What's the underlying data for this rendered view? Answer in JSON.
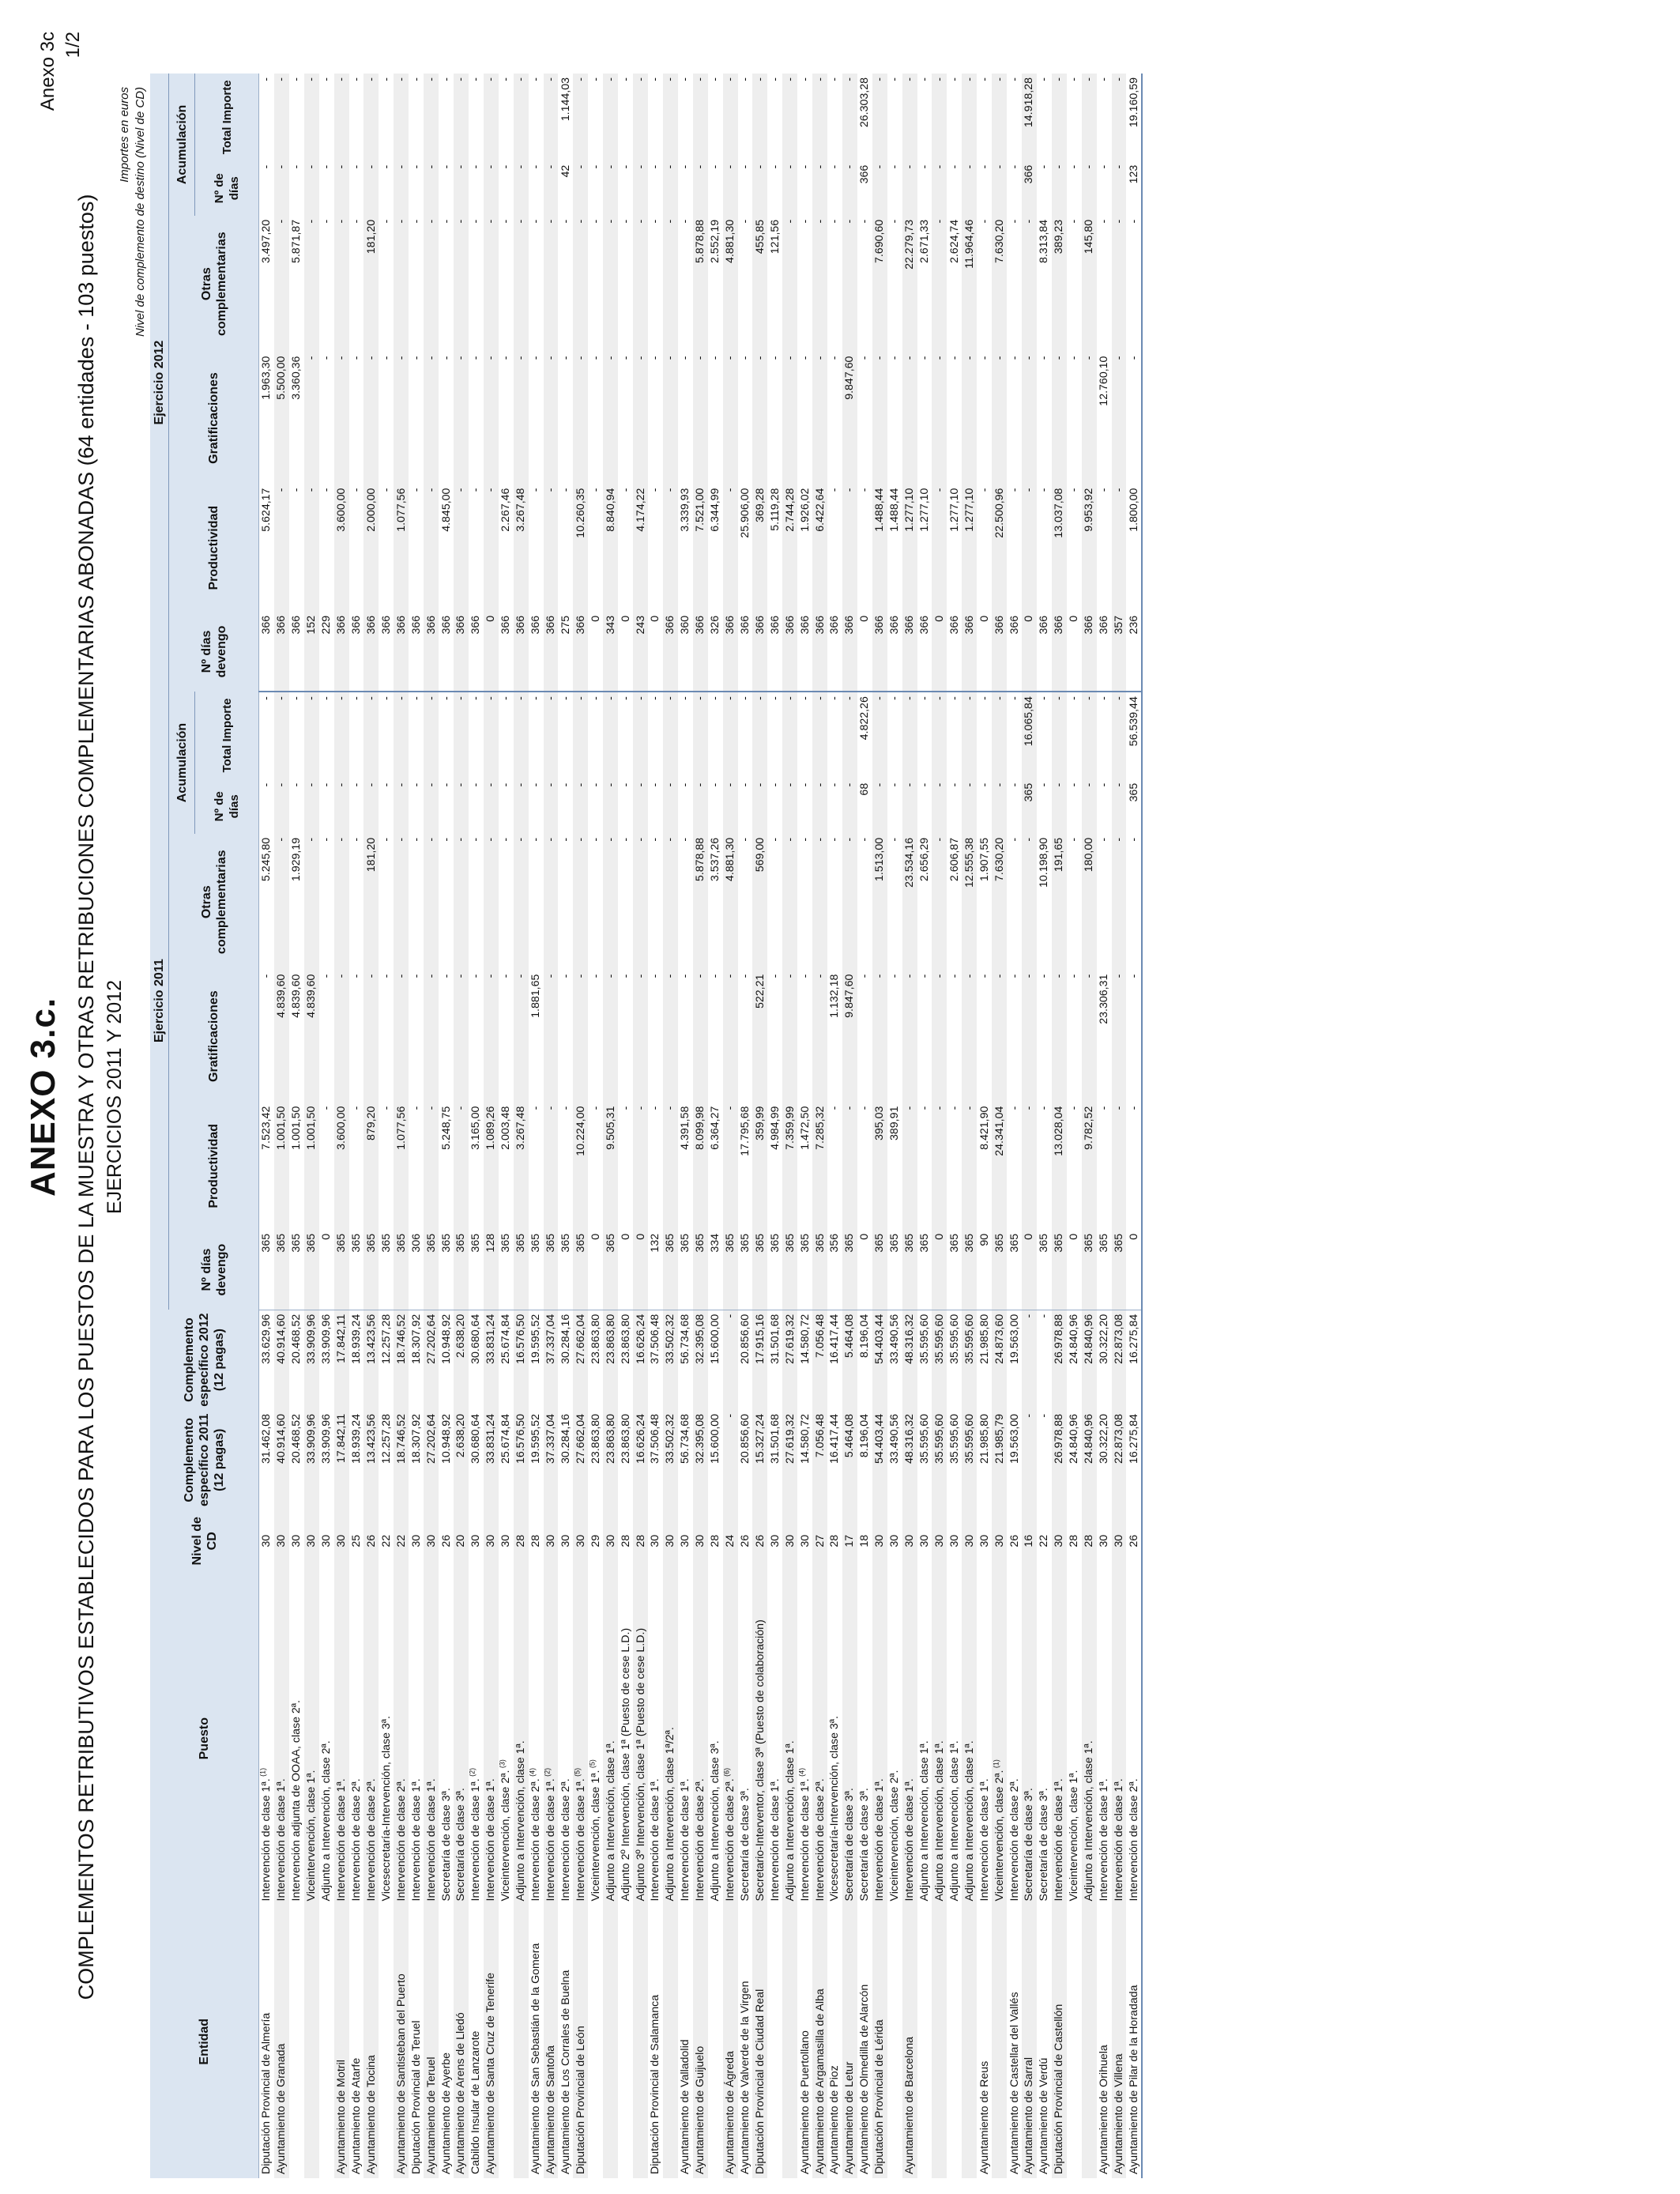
{
  "header": {
    "anexo_ref": "Anexo 3c",
    "page": "1/2",
    "title": "ANEXO 3.c.",
    "subtitle": "COMPLEMENTOS RETRIBUTIVOS ESTABLECIDOS PARA LOS PUESTOS DE LA MUESTRA Y OTRAS RETRIBUCIONES COMPLEMENTARIAS ABONADAS (64 entidades - 103 puestos)",
    "years": "EJERCICIOS 2011 Y 2012",
    "note_units": "Importes en euros",
    "note_level": "Nivel de complemento de destino (Nivel de CD)"
  },
  "columns": {
    "entidad": "Entidad",
    "puesto": "Puesto",
    "nivel": "Nivel de CD",
    "ce2011": "Complemento específico 2011 (12 pagas)",
    "ce2012": "Complemento específico 2012 (12 pagas)",
    "ej2011": "Ejercicio 2011",
    "ej2012": "Ejercicio 2012",
    "dias": "Nº días devengo",
    "productividad": "Productividad",
    "gratificaciones": "Gratificaciones",
    "otras": "Otras complementarias",
    "acumulacion": "Acumulación",
    "acum_dias": "Nº de días",
    "acum_total": "Total Importe"
  },
  "rows": [
    [
      "Diputación Provincial de Almería",
      "Intervención de clase 1ª.",
      "1",
      "30",
      "31.462,08",
      "33.629,96",
      "365",
      "7.523,42",
      "-",
      "5.245,80",
      "-",
      "-",
      "366",
      "5.624,17",
      "1.963,30",
      "3.497,20",
      "-",
      "-"
    ],
    [
      "Ayuntamiento de Granada",
      "Intervención de clase 1ª.",
      "",
      "30",
      "40.914,60",
      "40.914,60",
      "365",
      "1.001,50",
      "4.839,60",
      "-",
      "-",
      "-",
      "366",
      "-",
      "5.500,00",
      "-",
      "-",
      "-"
    ],
    [
      "",
      "Intervención adjunta de OOAA, clase 2ª.",
      "",
      "30",
      "20.468,52",
      "20.468,52",
      "365",
      "1.001,50",
      "4.839,60",
      "1.929,19",
      "-",
      "-",
      "366",
      "-",
      "3.360,36",
      "5.871,87",
      "-",
      "-"
    ],
    [
      "",
      "Viceintervención, clase 1ª.",
      "",
      "30",
      "33.909,96",
      "33.909,96",
      "365",
      "1.001,50",
      "4.839,60",
      "-",
      "-",
      "-",
      "152",
      "-",
      "-",
      "-",
      "-",
      "-"
    ],
    [
      "",
      "Adjunto a Intervención, clase 2ª.",
      "",
      "30",
      "33.909,96",
      "33.909,96",
      "0",
      "-",
      "-",
      "-",
      "-",
      "-",
      "229",
      "-",
      "-",
      "-",
      "-",
      "-"
    ],
    [
      "Ayuntamiento de Motril",
      "Intervención de clase 1ª.",
      "",
      "30",
      "17.842,11",
      "17.842,11",
      "365",
      "3.600,00",
      "-",
      "-",
      "-",
      "-",
      "366",
      "3.600,00",
      "-",
      "-",
      "-",
      "-"
    ],
    [
      "Ayuntamiento de Atarfe",
      "Intervención de clase 2ª.",
      "",
      "25",
      "18.939,24",
      "18.939,24",
      "365",
      "-",
      "-",
      "-",
      "-",
      "-",
      "366",
      "-",
      "-",
      "-",
      "-",
      "-"
    ],
    [
      "Ayuntamiento de Tocina",
      "Intervención de clase 2ª.",
      "",
      "26",
      "13.423,56",
      "13.423,56",
      "365",
      "879,20",
      "-",
      "181,20",
      "-",
      "-",
      "366",
      "2.000,00",
      "-",
      "181,20",
      "-",
      "-"
    ],
    [
      "",
      "Vicesecretaría-Intervención, clase 3ª.",
      "",
      "22",
      "12.257,28",
      "12.257,28",
      "365",
      "-",
      "-",
      "-",
      "-",
      "-",
      "366",
      "-",
      "-",
      "-",
      "-",
      "-"
    ],
    [
      "Ayuntamiento de Santisteban del Puerto",
      "Intervención de clase 2ª.",
      "",
      "22",
      "18.746,52",
      "18.746,52",
      "365",
      "1.077,56",
      "-",
      "-",
      "-",
      "-",
      "366",
      "1.077,56",
      "-",
      "-",
      "-",
      "-"
    ],
    [
      "Diputación Provincial de Teruel",
      "Intervención de clase 1ª.",
      "",
      "30",
      "18.307,92",
      "18.307,92",
      "306",
      "-",
      "-",
      "-",
      "-",
      "-",
      "366",
      "-",
      "-",
      "-",
      "-",
      "-"
    ],
    [
      "Ayuntamiento de Teruel",
      "Intervención de clase 1ª.",
      "",
      "30",
      "27.202,64",
      "27.202,64",
      "365",
      "-",
      "-",
      "-",
      "-",
      "-",
      "366",
      "-",
      "-",
      "-",
      "-",
      "-"
    ],
    [
      "Ayuntamiento de Ayerbe",
      "Secretaría de clase 3ª.",
      "",
      "26",
      "10.948,92",
      "10.948,92",
      "365",
      "5.248,75",
      "-",
      "-",
      "-",
      "-",
      "366",
      "4.845,00",
      "-",
      "-",
      "-",
      "-"
    ],
    [
      "Ayuntamiento de Arens de Lledó",
      "Secretaría de clase 3ª.",
      "",
      "20",
      "2.638,20",
      "2.638,20",
      "365",
      "-",
      "-",
      "-",
      "-",
      "-",
      "366",
      "-",
      "-",
      "-",
      "-",
      "-"
    ],
    [
      "Cabildo Insular de Lanzarote",
      "Intervención de clase 1ª.",
      "2",
      "30",
      "30.680,64",
      "30.680,64",
      "365",
      "3.165,00",
      "-",
      "-",
      "-",
      "-",
      "366",
      "-",
      "-",
      "-",
      "-",
      "-"
    ],
    [
      "Ayuntamiento de Santa Cruz de Tenerife",
      "Intervención de clase 1ª.",
      "",
      "30",
      "33.831,24",
      "33.831,24",
      "128",
      "1.089,26",
      "-",
      "-",
      "-",
      "-",
      "0",
      "-",
      "-",
      "-",
      "-",
      "-"
    ],
    [
      "",
      "Viceintervención, clase 2ª.",
      "3",
      "30",
      "25.674,84",
      "25.674,84",
      "365",
      "2.003,48",
      "-",
      "-",
      "-",
      "-",
      "366",
      "2.267,46",
      "-",
      "-",
      "-",
      "-"
    ],
    [
      "",
      "Adjunto a Intervención, clase 1ª.",
      "",
      "28",
      "16.576,50",
      "16.576,50",
      "365",
      "3.267,48",
      "-",
      "-",
      "-",
      "-",
      "366",
      "3.267,48",
      "-",
      "-",
      "-",
      "-"
    ],
    [
      "Ayuntamiento de San Sebastián de la Gomera",
      "Intervención de clase 2ª.",
      "4",
      "28",
      "19.595,52",
      "19.595,52",
      "365",
      "-",
      "1.881,65",
      "-",
      "-",
      "-",
      "366",
      "-",
      "-",
      "-",
      "-",
      "-"
    ],
    [
      "Ayuntamiento de Santoña",
      "Intervención de clase 1ª.",
      "2",
      "30",
      "37.337,04",
      "37.337,04",
      "365",
      "-",
      "-",
      "-",
      "-",
      "-",
      "366",
      "-",
      "-",
      "-",
      "-",
      "-"
    ],
    [
      "Ayuntamiento de Los Corrales de Buelna",
      "Intervención de clase 2ª.",
      "",
      "30",
      "30.284,16",
      "30.284,16",
      "365",
      "-",
      "-",
      "-",
      "-",
      "-",
      "275",
      "-",
      "-",
      "-",
      "42",
      "1.144,03"
    ],
    [
      "Diputación Provincial de León",
      "Intervención de clase 1ª.",
      "5",
      "30",
      "27.662,04",
      "27.662,04",
      "365",
      "10.224,00",
      "-",
      "-",
      "-",
      "-",
      "366",
      "10.260,35",
      "-",
      "-",
      "-",
      "-"
    ],
    [
      "",
      "Viceintervención, clase 1ª.",
      "5",
      "29",
      "23.863,80",
      "23.863,80",
      "0",
      "-",
      "-",
      "-",
      "-",
      "-",
      "0",
      "-",
      "-",
      "-",
      "-",
      "-"
    ],
    [
      "",
      "Adjunto a Intervención, clase 1ª.",
      "",
      "30",
      "23.863,80",
      "23.863,80",
      "365",
      "9.505,31",
      "-",
      "-",
      "-",
      "-",
      "343",
      "8.840,94",
      "-",
      "-",
      "-",
      "-"
    ],
    [
      "",
      "Adjunto 2º Intervención, clase 1ª (Puesto de cese L.D.)",
      "",
      "28",
      "23.863,80",
      "23.863,80",
      "0",
      "-",
      "-",
      "-",
      "-",
      "-",
      "0",
      "-",
      "-",
      "-",
      "-",
      "-"
    ],
    [
      "",
      "Adjunto 3º Intervención, clase 1ª (Puesto de cese L.D.)",
      "",
      "28",
      "16.626,24",
      "16.626,24",
      "0",
      "-",
      "-",
      "-",
      "-",
      "-",
      "243",
      "4.174,22",
      "-",
      "-",
      "-",
      "-"
    ],
    [
      "Diputación Provincial de Salamanca",
      "Intervención de clase 1ª.",
      "",
      "30",
      "37.506,48",
      "37.506,48",
      "132",
      "-",
      "-",
      "-",
      "-",
      "-",
      "0",
      "-",
      "-",
      "-",
      "-",
      "-"
    ],
    [
      "",
      "Adjunto a Intervención, clase 1ª/2ª.",
      "",
      "30",
      "33.502,32",
      "33.502,32",
      "365",
      "-",
      "-",
      "-",
      "-",
      "-",
      "366",
      "-",
      "-",
      "-",
      "-",
      "-"
    ],
    [
      "Ayuntamiento de Valladolid",
      "Intervención de clase 1ª.",
      "",
      "30",
      "56.734,68",
      "56.734,68",
      "365",
      "4.391,58",
      "-",
      "-",
      "-",
      "-",
      "360",
      "3.339,93",
      "-",
      "-",
      "-",
      "-"
    ],
    [
      "Ayuntamiento de Guijuelo",
      "Intervención de clase 2ª.",
      "",
      "30",
      "32.395,08",
      "32.395,08",
      "365",
      "8.099,98",
      "-",
      "5.878,88",
      "-",
      "-",
      "366",
      "7.521,00",
      "-",
      "5.878,88",
      "-",
      "-"
    ],
    [
      "",
      "Adjunto a Intervención, clase 3ª.",
      "",
      "28",
      "15.600,00",
      "15.600,00",
      "334",
      "6.364,27",
      "-",
      "3.537,26",
      "-",
      "-",
      "326",
      "6.344,99",
      "-",
      "2.552,19",
      "-",
      "-"
    ],
    [
      "Ayuntamiento de Ágreda",
      "Intervención de clase 2ª.",
      "6",
      "24",
      "-",
      "-",
      "365",
      "-",
      "-",
      "4.881,30",
      "-",
      "-",
      "366",
      "-",
      "-",
      "4.881,30",
      "-",
      "-"
    ],
    [
      "Ayuntamiento de Valverde de la Virgen",
      "Secretaría de clase 3ª.",
      "",
      "26",
      "20.856,60",
      "20.856,60",
      "365",
      "17.795,68",
      "-",
      "-",
      "-",
      "-",
      "366",
      "25.906,00",
      "-",
      "-",
      "-",
      "-"
    ],
    [
      "Diputación Provincial de Ciudad Real",
      "Secretario-Interventor, clase 3ª (Puesto de colaboración)",
      "",
      "26",
      "15.327,24",
      "17.915,16",
      "365",
      "359,99",
      "522,21",
      "569,00",
      "-",
      "-",
      "366",
      "369,28",
      "-",
      "455,85",
      "-",
      "-"
    ],
    [
      "",
      "Intervención de clase 1ª.",
      "",
      "30",
      "31.501,68",
      "31.501,68",
      "365",
      "4.984,99",
      "-",
      "-",
      "-",
      "-",
      "366",
      "5.119,28",
      "-",
      "121,56",
      "-",
      "-"
    ],
    [
      "",
      "Adjunto a Intervención, clase 1ª.",
      "",
      "30",
      "27.619,32",
      "27.619,32",
      "365",
      "7.359,99",
      "-",
      "-",
      "-",
      "-",
      "366",
      "2.744,28",
      "-",
      "-",
      "-",
      "-"
    ],
    [
      "Ayuntamiento de Puertollano",
      "Intervención de clase 1ª.",
      "4",
      "30",
      "14.580,72",
      "14.580,72",
      "365",
      "1.472,50",
      "-",
      "-",
      "-",
      "-",
      "366",
      "1.926,02",
      "-",
      "-",
      "-",
      "-"
    ],
    [
      "Ayuntamiento de Argamasilla de Alba",
      "Intervención de clase 2ª.",
      "",
      "27",
      "7.056,48",
      "7.056,48",
      "365",
      "7.285,32",
      "-",
      "-",
      "-",
      "-",
      "366",
      "6.422,64",
      "-",
      "-",
      "-",
      "-"
    ],
    [
      "Ayuntamiento de Pioz",
      "Vicesecretaría-Intervención, clase 3ª.",
      "",
      "28",
      "16.417,44",
      "16.417,44",
      "356",
      "-",
      "1.132,18",
      "-",
      "-",
      "-",
      "366",
      "-",
      "-",
      "-",
      "-",
      "-"
    ],
    [
      "Ayuntamiento de Letur",
      "Secretaría de clase 3ª.",
      "",
      "17",
      "5.464,08",
      "5.464,08",
      "365",
      "-",
      "9.847,60",
      "-",
      "-",
      "-",
      "366",
      "-",
      "9.847,60",
      "-",
      "-",
      "-"
    ],
    [
      "Ayuntamiento de Olmedilla de Alarcón",
      "Secretaría de clase 3ª.",
      "",
      "18",
      "8.196,04",
      "8.196,04",
      "0",
      "-",
      "-",
      "-",
      "68",
      "4.822,26",
      "0",
      "-",
      "-",
      "-",
      "366",
      "26.303,28"
    ],
    [
      "Diputación Provincial de Lérida",
      "Intervención de clase 1ª.",
      "",
      "30",
      "54.403,44",
      "54.403,44",
      "365",
      "395,03",
      "-",
      "1.513,00",
      "-",
      "-",
      "366",
      "1.488,44",
      "-",
      "7.690,60",
      "-",
      "-"
    ],
    [
      "",
      "Viceintervención, clase 2ª.",
      "",
      "30",
      "33.490,56",
      "33.490,56",
      "365",
      "389,91",
      "-",
      "-",
      "-",
      "-",
      "366",
      "1.488,44",
      "-",
      "-",
      "-",
      "-"
    ],
    [
      "Ayuntamiento de Barcelona",
      "Intervención de clase 1ª.",
      "",
      "30",
      "48.316,32",
      "48.316,32",
      "365",
      "-",
      "-",
      "23.534,16",
      "-",
      "-",
      "366",
      "1.277,10",
      "-",
      "22.279,73",
      "-",
      "-"
    ],
    [
      "",
      "Adjunto a Intervención, clase 1ª.",
      "",
      "30",
      "35.595,60",
      "35.595,60",
      "365",
      "-",
      "-",
      "2.656,29",
      "-",
      "-",
      "366",
      "1.277,10",
      "-",
      "2.671,33",
      "-",
      "-"
    ],
    [
      "",
      "Adjunto a Intervención, clase 1ª.",
      "",
      "30",
      "35.595,60",
      "35.595,60",
      "0",
      "-",
      "-",
      "-",
      "-",
      "-",
      "0",
      "-",
      "-",
      "-",
      "-",
      "-"
    ],
    [
      "",
      "Adjunto a Intervención, clase 1ª.",
      "",
      "30",
      "35.595,60",
      "35.595,60",
      "365",
      "-",
      "-",
      "2.606,87",
      "-",
      "-",
      "366",
      "1.277,10",
      "-",
      "2.624,74",
      "-",
      "-"
    ],
    [
      "",
      "Adjunto a Intervención, clase 1ª.",
      "",
      "30",
      "35.595,60",
      "35.595,60",
      "365",
      "-",
      "-",
      "12.555,38",
      "-",
      "-",
      "366",
      "1.277,10",
      "-",
      "11.964,46",
      "-",
      "-"
    ],
    [
      "Ayuntamiento de Reus",
      "Intervención de clase 1ª.",
      "",
      "30",
      "21.985,80",
      "21.985,80",
      "90",
      "8.421,90",
      "-",
      "1.907,55",
      "-",
      "-",
      "0",
      "-",
      "-",
      "-",
      "-",
      "-"
    ],
    [
      "",
      "Viceintervención, clase 2ª.",
      "1",
      "30",
      "21.985,79",
      "24.873,60",
      "365",
      "24.341,04",
      "-",
      "7.630,20",
      "-",
      "-",
      "366",
      "22.500,96",
      "-",
      "7.630,20",
      "-",
      "-"
    ],
    [
      "Ayuntamiento de Castellar del Vallés",
      "Intervención de clase 2ª.",
      "",
      "26",
      "19.563,00",
      "19.563,00",
      "365",
      "-",
      "-",
      "-",
      "-",
      "-",
      "366",
      "-",
      "-",
      "-",
      "-",
      "-"
    ],
    [
      "Ayuntamiento de Sarral",
      "Secretaría de clase 3ª.",
      "",
      "16",
      "-",
      "-",
      "0",
      "-",
      "-",
      "-",
      "365",
      "16.065,84",
      "0",
      "-",
      "-",
      "-",
      "366",
      "14.918,28"
    ],
    [
      "Ayuntamiento de Verdú",
      "Secretaría de clase 3ª.",
      "",
      "22",
      "-",
      "-",
      "365",
      "-",
      "-",
      "10.198,90",
      "-",
      "-",
      "366",
      "-",
      "-",
      "8.313,84",
      "-",
      "-"
    ],
    [
      "Diputación Provincial de Castellón",
      "Intervención de clase 1ª.",
      "",
      "30",
      "26.978,88",
      "26.978,88",
      "365",
      "13.028,04",
      "-",
      "191,65",
      "-",
      "-",
      "366",
      "13.037,08",
      "-",
      "389,23",
      "-",
      "-"
    ],
    [
      "",
      "Viceintervención, clase 1ª.",
      "",
      "28",
      "24.840,96",
      "24.840,96",
      "0",
      "-",
      "-",
      "-",
      "-",
      "-",
      "0",
      "-",
      "-",
      "-",
      "-",
      "-"
    ],
    [
      "",
      "Adjunto a Intervención, clase 1ª.",
      "",
      "28",
      "24.840,96",
      "24.840,96",
      "365",
      "9.782,52",
      "-",
      "180,00",
      "-",
      "-",
      "366",
      "9.953,92",
      "-",
      "145,80",
      "-",
      "-"
    ],
    [
      "Ayuntamiento de Orihuela",
      "Intervención de clase 1ª.",
      "",
      "30",
      "30.322,20",
      "30.322,20",
      "365",
      "-",
      "23.306,31",
      "-",
      "-",
      "-",
      "366",
      "-",
      "12.760,10",
      "-",
      "-",
      "-"
    ],
    [
      "Ayuntamiento de Villena",
      "Intervención de clase 1ª.",
      "",
      "30",
      "22.873,08",
      "22.873,08",
      "365",
      "-",
      "-",
      "-",
      "-",
      "-",
      "357",
      "-",
      "-",
      "-",
      "-",
      "-"
    ],
    [
      "Ayuntamiento de Pilar de la Horadada",
      "Intervención de clase 2ª.",
      "",
      "26",
      "16.275,84",
      "16.275,84",
      "0",
      "-",
      "-",
      "-",
      "365",
      "56.539,44",
      "236",
      "1.800,00",
      "-",
      "-",
      "123",
      "19.160,59"
    ]
  ]
}
